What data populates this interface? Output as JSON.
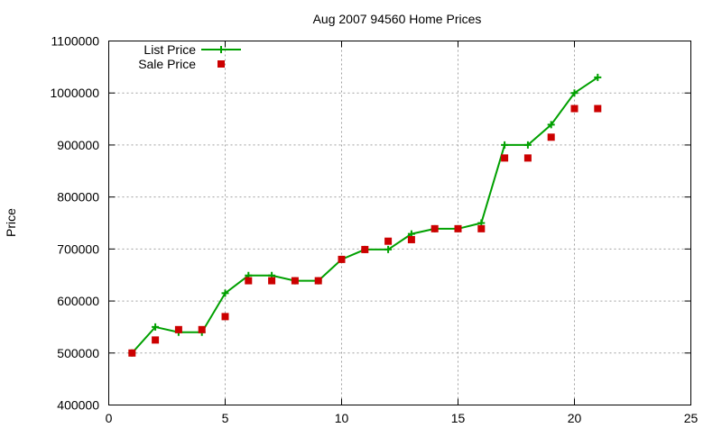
{
  "chart_data": {
    "type": "line",
    "title": "Aug 2007 94560 Home Prices",
    "xlabel": "",
    "ylabel": "Price",
    "xlim": [
      0,
      25
    ],
    "ylim": [
      400000,
      1100000
    ],
    "xticks": [
      0,
      5,
      10,
      15,
      20,
      25
    ],
    "yticks": [
      400000,
      500000,
      600000,
      700000,
      800000,
      900000,
      1000000,
      1100000
    ],
    "grid": true,
    "legend_position": "top-left",
    "x": [
      1,
      2,
      3,
      4,
      5,
      6,
      7,
      8,
      9,
      10,
      11,
      12,
      13,
      14,
      15,
      16,
      17,
      18,
      19,
      20,
      21
    ],
    "series": [
      {
        "name": "List Price",
        "style": "lines+crosses",
        "color": "#00a000",
        "values": [
          500000,
          550000,
          540000,
          540000,
          615000,
          649000,
          649000,
          639000,
          639000,
          680000,
          699000,
          699000,
          729000,
          739000,
          739000,
          750000,
          900000,
          900000,
          939000,
          1000000,
          1030000
        ]
      },
      {
        "name": "Sale Price",
        "style": "squares",
        "color": "#cc0000",
        "values": [
          500000,
          525000,
          545000,
          545000,
          570000,
          639000,
          639000,
          639000,
          639000,
          680000,
          699000,
          715000,
          718000,
          739000,
          739000,
          739000,
          875000,
          875000,
          915000,
          970000,
          970000
        ]
      }
    ]
  }
}
